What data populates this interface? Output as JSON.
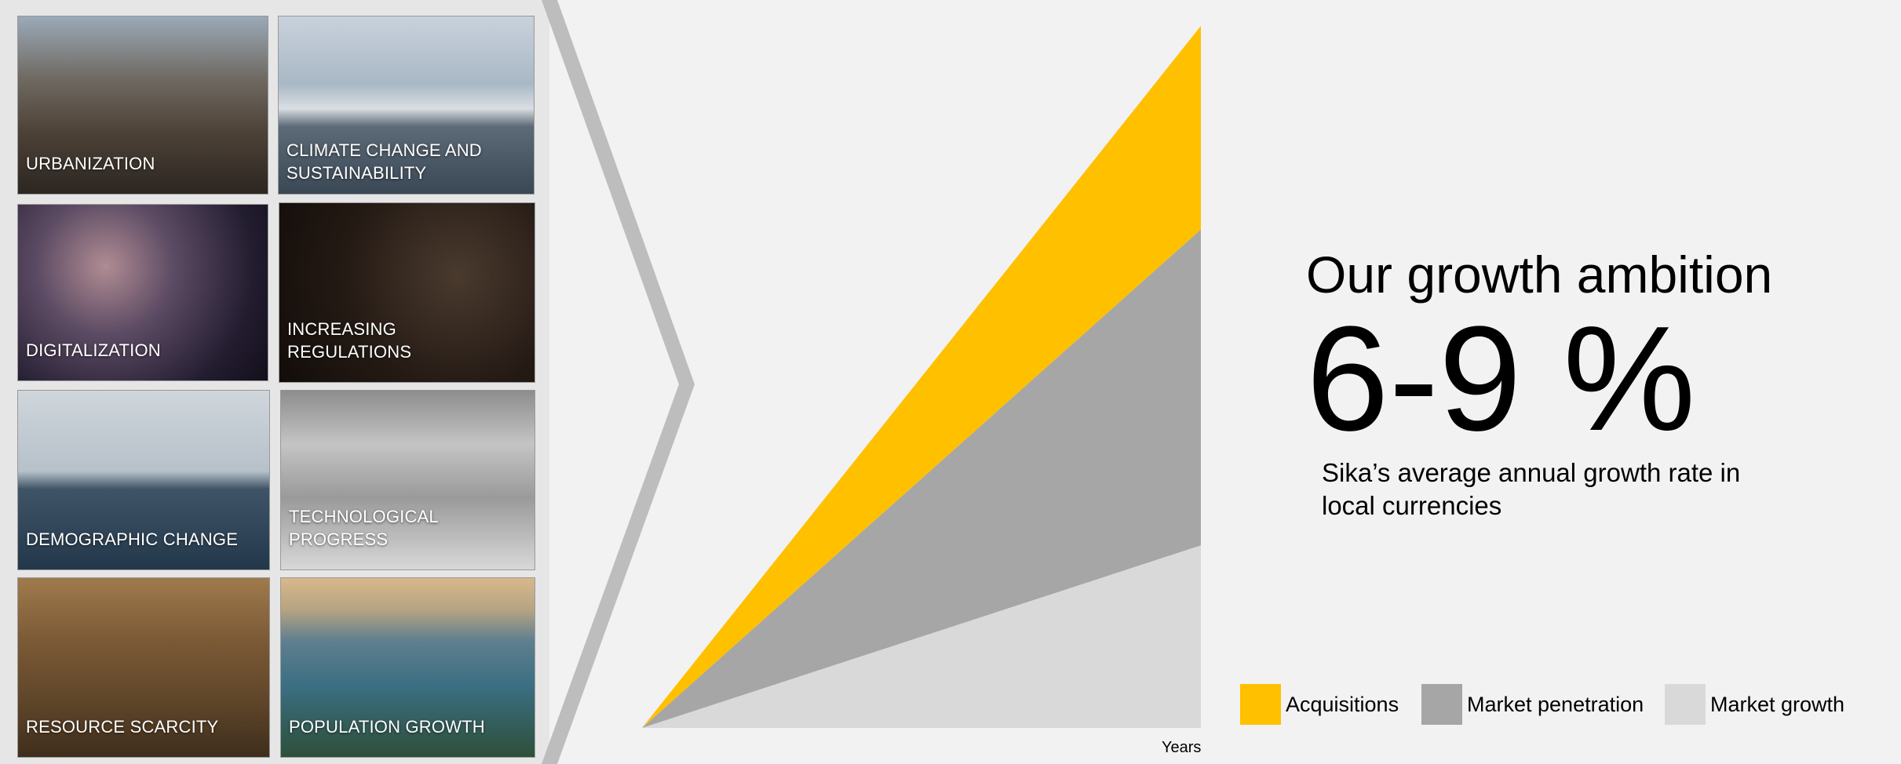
{
  "tiles": [
    {
      "label": "URBANIZATION"
    },
    {
      "label": "CLIMATE CHANGE AND SUSTAINABILITY"
    },
    {
      "label": "DIGITALIZATION"
    },
    {
      "label": "INCREASING REGULATIONS"
    },
    {
      "label": "DEMOGRAPHIC CHANGE"
    },
    {
      "label": "TECHNOLOGICAL PROGRESS"
    },
    {
      "label": "RESOURCE SCARCITY"
    },
    {
      "label": "POPULATION GROWTH"
    }
  ],
  "ambition": {
    "title": "Our growth ambition",
    "value": "6-9 %",
    "subtitle": "Sika’s average annual growth rate in local currencies"
  },
  "chart_data": {
    "type": "area",
    "xlabel": "Years",
    "ylabel": "",
    "x": [
      0,
      1
    ],
    "ylim": [
      0,
      1
    ],
    "grid": false,
    "legend_position": "bottom",
    "stacked": true,
    "series": [
      {
        "name": "Market growth",
        "color": "#d9d9d9",
        "values": [
          0,
          0.26
        ]
      },
      {
        "name": "Market penetration",
        "color": "#a6a6a6",
        "values": [
          0,
          0.45
        ]
      },
      {
        "name": "Acquisitions",
        "color": "#ffc000",
        "values": [
          0,
          0.29
        ]
      }
    ],
    "legend": [
      {
        "label": "Acquisitions",
        "color": "#ffc000"
      },
      {
        "label": "Market penetration",
        "color": "#a6a6a6"
      },
      {
        "label": "Market growth",
        "color": "#d9d9d9"
      }
    ]
  }
}
